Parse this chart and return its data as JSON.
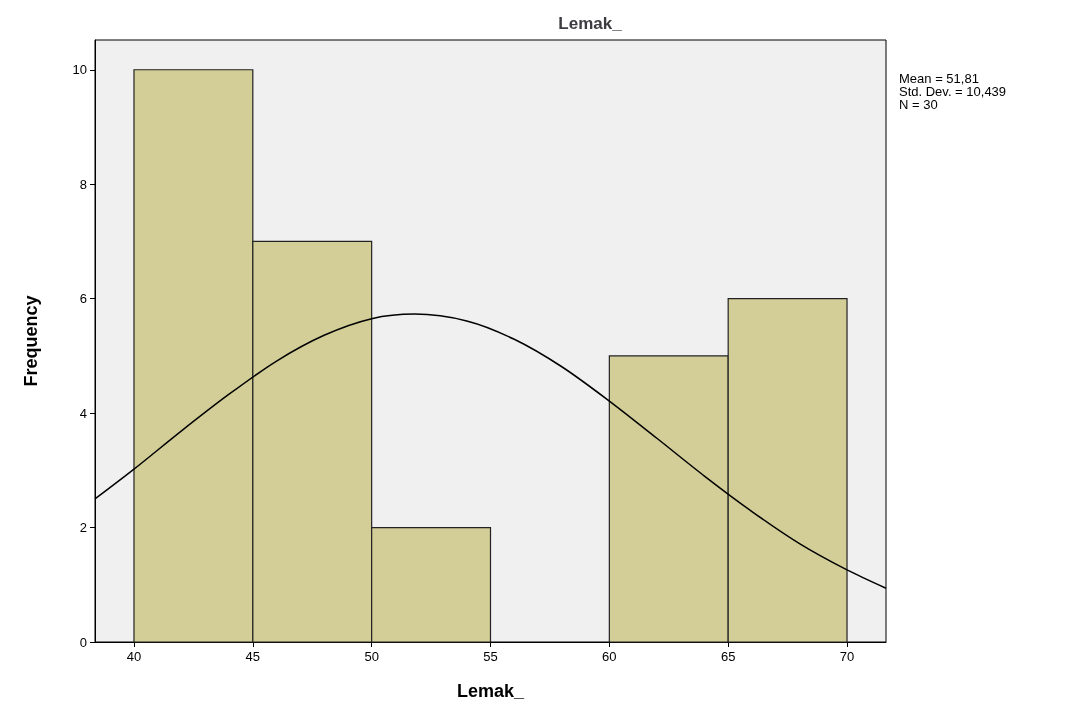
{
  "chart_data": {
    "type": "histogram",
    "title": "Lemak_",
    "xlabel": "Lemak_",
    "ylabel": "Frequency",
    "bins": [
      40,
      45,
      50,
      55,
      60,
      65,
      70
    ],
    "values": [
      10,
      7,
      2,
      0,
      5,
      6
    ],
    "color": "#d3ce97",
    "series": [
      {
        "type": "line",
        "color": "#000000",
        "x": [
          38.36,
          40,
          42,
          44,
          46,
          48,
          50,
          51.81,
          54,
          56,
          58,
          60,
          62,
          64,
          66,
          68,
          70,
          71.64
        ],
        "values": [
          2.5,
          3.02,
          3.69,
          4.33,
          4.91,
          5.36,
          5.65,
          5.73,
          5.61,
          5.29,
          4.81,
          4.21,
          3.56,
          2.9,
          2.28,
          1.72,
          1.26,
          0.94
        ]
      }
    ],
    "xlim": [
      38.36,
      71.64
    ],
    "ylim": [
      0,
      10.52
    ],
    "xticks": [
      40,
      45,
      50,
      55,
      60,
      65,
      70
    ],
    "yticks": [
      0,
      2,
      4,
      6,
      8,
      10
    ],
    "grid": false,
    "marker": "none",
    "line_style": "solid",
    "annotations": [
      "Mean = 51,81",
      "Std. Dev. = 10,439",
      "N = 30"
    ]
  }
}
